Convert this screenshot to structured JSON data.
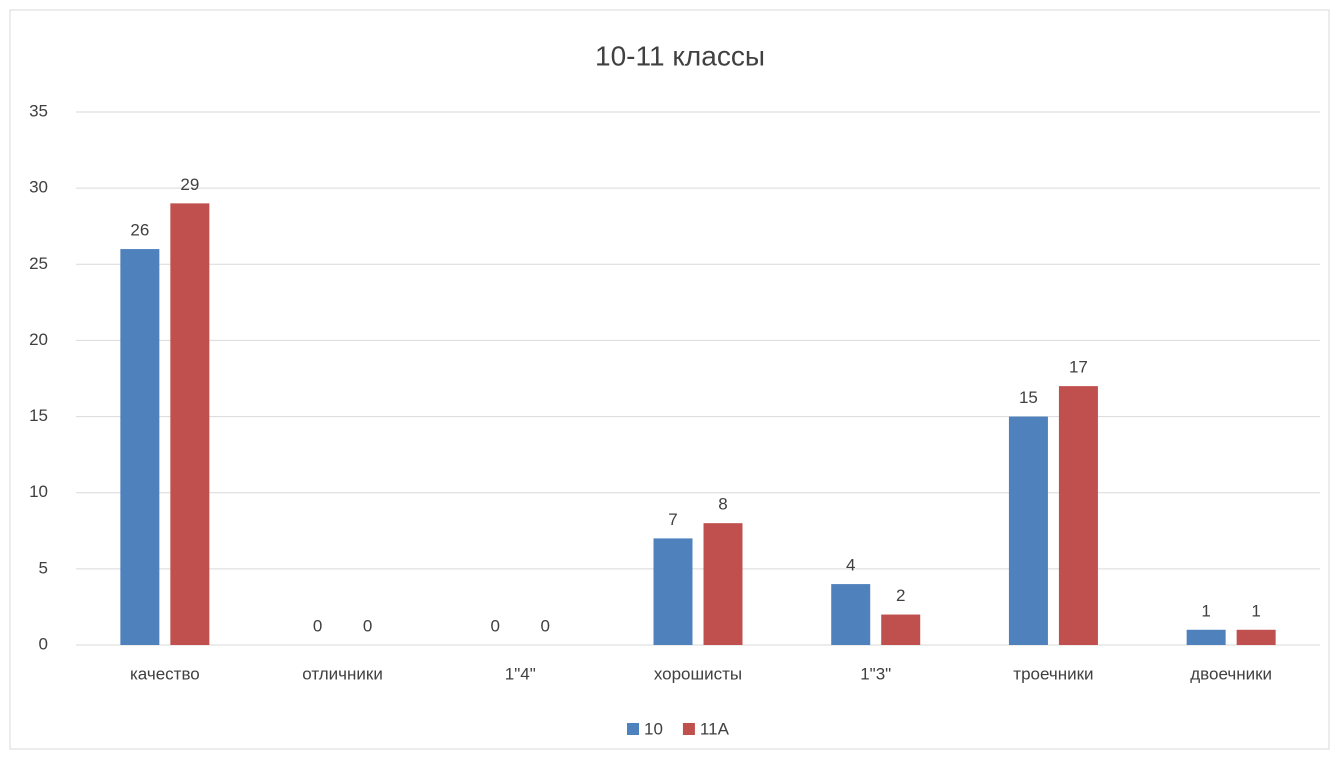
{
  "chart_data": {
    "type": "bar",
    "title": "10-11 классы",
    "categories": [
      "качество",
      "отличники",
      "1\"4\"",
      "хорошисты",
      "1\"3\"",
      "троечники",
      "двоечники"
    ],
    "series": [
      {
        "name": "10",
        "color": "#4f81bd",
        "values": [
          26,
          0,
          0,
          7,
          4,
          15,
          1
        ]
      },
      {
        "name": "11A",
        "color": "#c0504d",
        "values": [
          29,
          0,
          0,
          8,
          2,
          17,
          1
        ]
      }
    ],
    "ylim": [
      0,
      35
    ],
    "yticks": [
      0,
      5,
      10,
      15,
      20,
      25,
      30,
      35
    ],
    "grid": true,
    "legend": "bottom"
  }
}
